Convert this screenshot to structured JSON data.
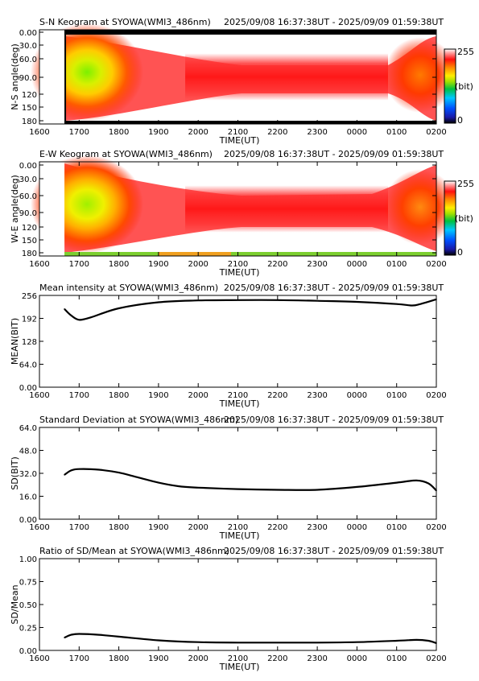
{
  "ticks": {
    "time": [
      "1600",
      "1700",
      "1800",
      "1900",
      "2000",
      "2100",
      "2200",
      "2300",
      "0000",
      "0100",
      "0200"
    ],
    "angle": [
      "0.00",
      "30.0",
      "60.0",
      "90.0",
      "120",
      "150",
      "180"
    ]
  },
  "xlabel": "TIME(UT)",
  "colorbar": {
    "max": "255",
    "unit": "(bit)",
    "min": "0"
  },
  "chart_data": [
    {
      "type": "heatmap",
      "title": "S-N Keogram at SYOWA(WMI3_486nm)",
      "time_range": "2025/09/08 16:37:38UT - 2025/09/09 01:59:38UT",
      "xlabel": "TIME(UT)",
      "ylabel": "N-S angle(deg)",
      "x_range": [
        1600,
        2600
      ],
      "ylim": [
        0,
        180
      ],
      "data_start": 1663,
      "colorscale": {
        "min": 0,
        "max": 255,
        "unit": "(bit)"
      },
      "features": [
        {
          "x": 1700,
          "y": 95,
          "note": "green/yellow peak"
        },
        {
          "x": 2520,
          "y": 95,
          "note": "orange enhancement"
        }
      ]
    },
    {
      "type": "heatmap",
      "title": "E-W Keogram at SYOWA(WMI3_486nm)",
      "time_range": "2025/09/08 16:37:38UT - 2025/09/09 01:59:38UT",
      "xlabel": "TIME(UT)",
      "ylabel": "W-E angle(deg)",
      "x_range": [
        1600,
        2600
      ],
      "ylim": [
        0,
        180
      ],
      "data_start": 1663,
      "colorscale": {
        "min": 0,
        "max": 255,
        "unit": "(bit)"
      },
      "features": [
        {
          "x": 1700,
          "y": 95,
          "note": "green/yellow peak"
        },
        {
          "x": 2520,
          "y": 95,
          "note": "orange enhancement"
        }
      ]
    },
    {
      "type": "line",
      "title": "Mean intensity at SYOWA(WMI3_486nm)",
      "time_range": "2025/09/08 16:37:38UT - 2025/09/09 01:59:38UT",
      "xlabel": "TIME(UT)",
      "ylabel": "MEAN(BIT)",
      "xlim": [
        1600,
        2600
      ],
      "ylim": [
        0,
        256
      ],
      "yticks": [
        "0.00",
        "64.0",
        "128",
        "192",
        "256"
      ],
      "x": [
        1663,
        1680,
        1700,
        1730,
        1800,
        1900,
        2000,
        2100,
        2200,
        2300,
        2400,
        2500,
        2540,
        2560,
        2600
      ],
      "y": [
        218,
        200,
        188,
        195,
        220,
        237,
        242,
        243,
        243,
        241,
        238,
        232,
        228,
        232,
        245
      ]
    },
    {
      "type": "line",
      "title": "Standard Deviation at SYOWA(WMI3_486nm)",
      "time_range": "2025/09/08 16:37:38UT - 2025/09/09 01:59:38UT",
      "xlabel": "TIME(UT)",
      "ylabel": "SD(BIT)",
      "xlim": [
        1600,
        2600
      ],
      "ylim": [
        0,
        64
      ],
      "yticks": [
        "0.00",
        "16.0",
        "32.0",
        "48.0",
        "64.0"
      ],
      "x": [
        1663,
        1680,
        1700,
        1750,
        1800,
        1850,
        1900,
        1950,
        2000,
        2100,
        2200,
        2300,
        2400,
        2500,
        2550,
        2580,
        2600
      ],
      "y": [
        31,
        34,
        35,
        34.5,
        32.5,
        29,
        25.5,
        23,
        22,
        21,
        20.5,
        20.5,
        22.5,
        25.5,
        27,
        25,
        20
      ]
    },
    {
      "type": "line",
      "title": "Ratio of SD/Mean at SYOWA(WMI3_486nm)",
      "time_range": "2025/09/08 16:37:38UT - 2025/09/09 01:59:38UT",
      "xlabel": "TIME(UT)",
      "ylabel": "SD/Mean",
      "xlim": [
        1600,
        2600
      ],
      "ylim": [
        0,
        1
      ],
      "yticks": [
        "0.00",
        "0.25",
        "0.50",
        "0.75",
        "1.00"
      ],
      "x": [
        1663,
        1680,
        1700,
        1750,
        1800,
        1900,
        2000,
        2100,
        2200,
        2300,
        2400,
        2500,
        2550,
        2580,
        2600
      ],
      "y": [
        0.14,
        0.17,
        0.18,
        0.17,
        0.15,
        0.11,
        0.09,
        0.085,
        0.085,
        0.085,
        0.09,
        0.105,
        0.115,
        0.105,
        0.08
      ]
    }
  ]
}
